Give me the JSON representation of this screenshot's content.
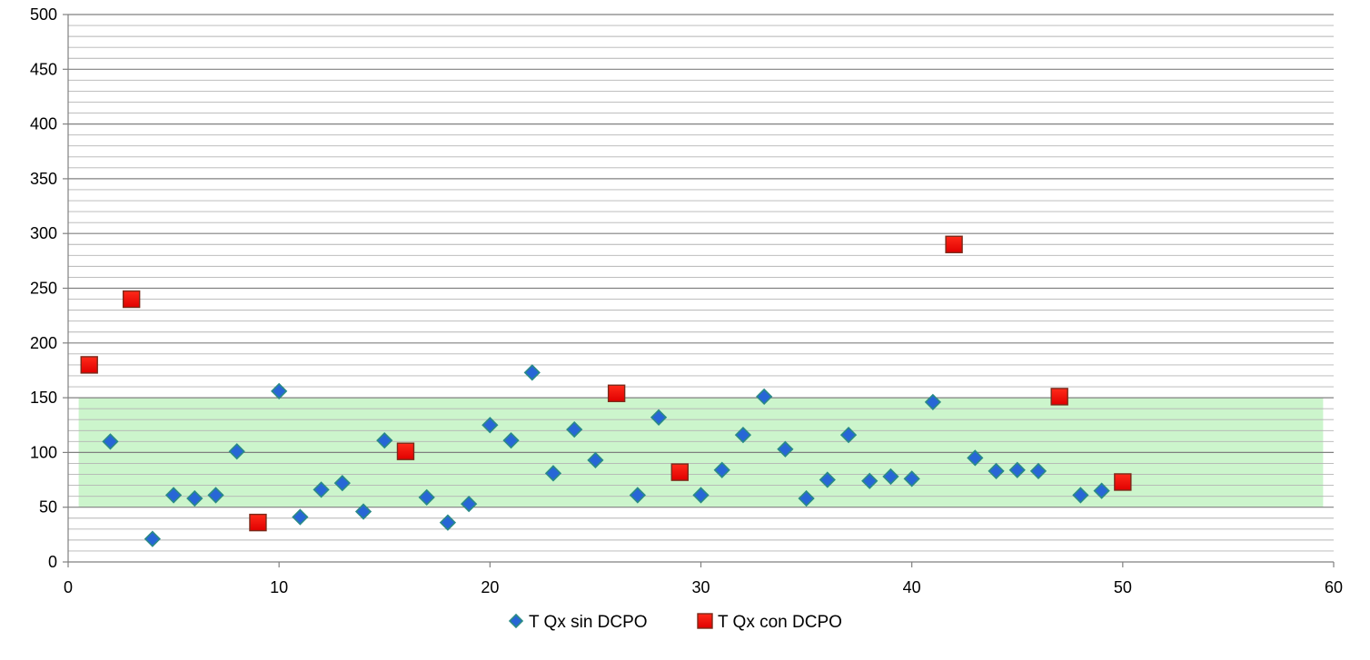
{
  "chart_data": {
    "type": "scatter",
    "title": "",
    "xlabel": "",
    "ylabel": "",
    "xlim": [
      0,
      60
    ],
    "ylim": [
      0,
      500
    ],
    "x_ticks": [
      "0",
      "10",
      "20",
      "30",
      "40",
      "50",
      "60"
    ],
    "y_ticks": [
      "0",
      "50",
      "100",
      "150",
      "200",
      "250",
      "300",
      "350",
      "400",
      "450",
      "500"
    ],
    "grid": true,
    "legend_position": "bottom",
    "shaded_band": {
      "x_range": [
        0.5,
        59.5
      ],
      "y_range": [
        50,
        150
      ],
      "color": "#ccf5cc"
    },
    "series": [
      {
        "name": "T Qx sin DCPO",
        "marker": "diamond",
        "color": "#1f58c8",
        "points": [
          [
            2,
            110
          ],
          [
            4,
            21
          ],
          [
            5,
            61
          ],
          [
            6,
            58
          ],
          [
            7,
            61
          ],
          [
            8,
            101
          ],
          [
            10,
            156
          ],
          [
            11,
            41
          ],
          [
            12,
            66
          ],
          [
            13,
            72
          ],
          [
            14,
            46
          ],
          [
            15,
            111
          ],
          [
            17,
            59
          ],
          [
            18,
            36
          ],
          [
            19,
            53
          ],
          [
            20,
            125
          ],
          [
            21,
            111
          ],
          [
            22,
            173
          ],
          [
            23,
            81
          ],
          [
            24,
            121
          ],
          [
            25,
            93
          ],
          [
            27,
            61
          ],
          [
            28,
            132
          ],
          [
            30,
            61
          ],
          [
            31,
            84
          ],
          [
            32,
            116
          ],
          [
            33,
            151
          ],
          [
            34,
            103
          ],
          [
            35,
            58
          ],
          [
            36,
            75
          ],
          [
            37,
            116
          ],
          [
            38,
            74
          ],
          [
            39,
            78
          ],
          [
            40,
            76
          ],
          [
            41,
            146
          ],
          [
            43,
            95
          ],
          [
            44,
            83
          ],
          [
            45,
            84
          ],
          [
            46,
            83
          ],
          [
            48,
            61
          ],
          [
            49,
            65
          ]
        ]
      },
      {
        "name": "T Qx con DCPO",
        "marker": "square",
        "color": "#ff0000",
        "points": [
          [
            1,
            180
          ],
          [
            3,
            240
          ],
          [
            9,
            36
          ],
          [
            16,
            101
          ],
          [
            26,
            154
          ],
          [
            29,
            82
          ],
          [
            42,
            290
          ],
          [
            47,
            151
          ],
          [
            50,
            73
          ]
        ]
      }
    ]
  }
}
